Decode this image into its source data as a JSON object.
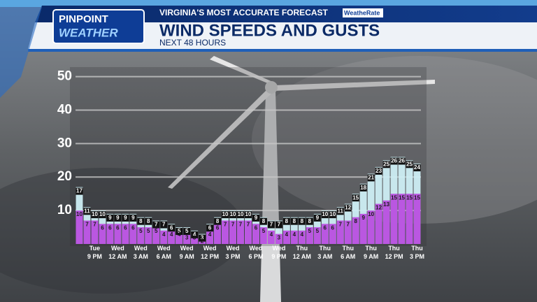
{
  "header": {
    "brand_line1": "PINPOINT",
    "brand_line2": "WEATHER",
    "tagline": "VIRGINIA'S MOST ACCURATE FORECAST",
    "badge": "WeatheRate"
  },
  "chart_data": {
    "type": "bar",
    "title": "WIND SPEEDS AND GUSTS",
    "subtitle": "NEXT 48 HOURS",
    "categories": [
      null,
      null,
      "Tue 9 PM",
      null,
      null,
      "Wed 12 AM",
      null,
      null,
      "Wed 3 AM",
      null,
      null,
      "Wed 6 AM",
      null,
      null,
      "Wed 9 AM",
      null,
      null,
      "Wed 12 PM",
      null,
      null,
      "Wed 3 PM",
      null,
      null,
      "Wed 6 PM",
      null,
      null,
      "Wed 9 PM",
      null,
      null,
      "Thu 12 AM",
      null,
      null,
      "Thu 3 AM",
      null,
      null,
      "Thu 6 AM",
      null,
      null,
      "Thu 9 AM",
      null,
      null,
      "Thu 12 PM",
      null,
      null,
      "Thu 3 PM"
    ],
    "series": [
      {
        "color": "#cdeef4",
        "values": [
          17,
          11,
          10,
          10,
          9,
          9,
          9,
          9,
          8,
          8,
          7,
          7,
          6,
          5,
          5,
          4,
          3,
          6,
          8,
          10,
          10,
          10,
          10,
          9,
          8,
          7,
          7,
          8,
          8,
          8,
          8,
          9,
          10,
          10,
          11,
          12,
          15,
          18,
          21,
          23,
          25,
          26,
          26,
          25,
          24
        ]
      },
      {
        "color": "#b94fe0",
        "values": [
          10,
          7,
          7,
          6,
          6,
          6,
          6,
          6,
          5,
          5,
          5,
          4,
          4,
          4,
          3,
          3,
          2,
          4,
          6,
          7,
          7,
          7,
          7,
          6,
          5,
          4,
          3,
          4,
          4,
          4,
          5,
          5,
          6,
          6,
          7,
          7,
          8,
          9,
          10,
          12,
          13,
          15,
          15,
          15,
          15
        ]
      }
    ],
    "ylim": [
      0,
      52
    ],
    "yticks": [
      10,
      20,
      30,
      40,
      50
    ],
    "grid": true
  }
}
